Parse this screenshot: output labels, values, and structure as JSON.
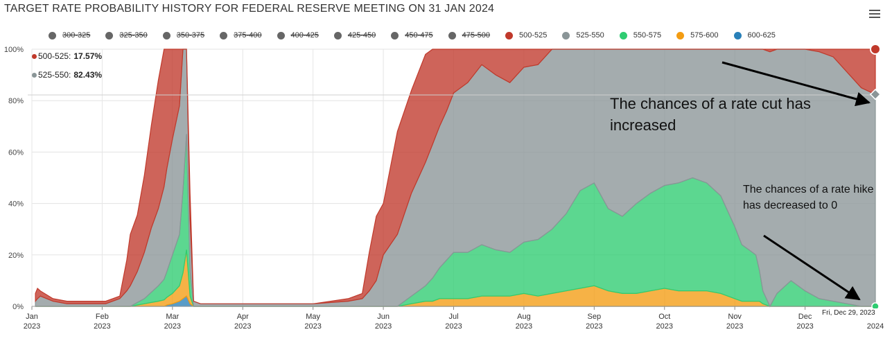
{
  "title": "TARGET RATE PROBABILITY HISTORY FOR FEDERAL RESERVE MEETING ON 31 JAN 2024",
  "menu_icon": "hamburger-menu-icon",
  "legend": [
    {
      "label": "300-325",
      "color": "#666666",
      "hidden": true
    },
    {
      "label": "325-350",
      "color": "#666666",
      "hidden": true
    },
    {
      "label": "350-375",
      "color": "#666666",
      "hidden": true
    },
    {
      "label": "375-400",
      "color": "#666666",
      "hidden": true
    },
    {
      "label": "400-425",
      "color": "#666666",
      "hidden": true
    },
    {
      "label": "425-450",
      "color": "#666666",
      "hidden": true
    },
    {
      "label": "450-475",
      "color": "#666666",
      "hidden": true
    },
    {
      "label": "475-500",
      "color": "#666666",
      "hidden": true
    },
    {
      "label": "500-525",
      "color": "#c0392b",
      "hidden": false
    },
    {
      "label": "525-550",
      "color": "#8a9597",
      "hidden": false
    },
    {
      "label": "550-575",
      "color": "#2ecc71",
      "hidden": false
    },
    {
      "label": "575-600",
      "color": "#f39c12",
      "hidden": false
    },
    {
      "label": "600-625",
      "color": "#2980b9",
      "hidden": false
    }
  ],
  "tooltip": {
    "line1": {
      "label": "500-525:",
      "value": "17.57%",
      "color": "#c0392b"
    },
    "line2": {
      "label": "525-550:",
      "value": "82.43%",
      "color": "#8a9597"
    }
  },
  "annotations": {
    "rate_cut": "The chances of a rate cut has increased",
    "rate_hike": "The chances of a rate hike has decreased to 0"
  },
  "date_flag": "Fri, Dec 29, 2023",
  "chart_data": {
    "type": "area",
    "stacking": "percent",
    "title": "TARGET RATE PROBABILITY HISTORY FOR FEDERAL RESERVE MEETING ON 31 JAN 2024",
    "x_range_months": [
      0,
      12
    ],
    "x_ticks": [
      {
        "m": 0,
        "label": "Jan",
        "year": "2023"
      },
      {
        "m": 1,
        "label": "Feb",
        "year": "2023"
      },
      {
        "m": 2,
        "label": "Mar",
        "year": "2023"
      },
      {
        "m": 3,
        "label": "Apr",
        "year": "2023"
      },
      {
        "m": 4,
        "label": "May",
        "year": "2023"
      },
      {
        "m": 5,
        "label": "Jun",
        "year": "2023"
      },
      {
        "m": 6,
        "label": "Jul",
        "year": "2023"
      },
      {
        "m": 7,
        "label": "Aug",
        "year": "2023"
      },
      {
        "m": 8,
        "label": "Sep",
        "year": "2023"
      },
      {
        "m": 9,
        "label": "Oct",
        "year": "2023"
      },
      {
        "m": 10,
        "label": "Nov",
        "year": "2023"
      },
      {
        "m": 11,
        "label": "Dec",
        "year": "2023"
      },
      {
        "m": 12,
        "label": "",
        "year": "2024"
      }
    ],
    "y_ticks": [
      0,
      20,
      40,
      60,
      80,
      100
    ],
    "y_tick_labels": [
      "0%",
      "20%",
      "40%",
      "60%",
      "80%",
      "100%"
    ],
    "ylim": [
      0,
      100
    ],
    "x": [
      0.05,
      0.08,
      0.12,
      0.3,
      0.5,
      0.7,
      0.9,
      1.0,
      1.05,
      1.15,
      1.25,
      1.35,
      1.4,
      1.5,
      1.6,
      1.7,
      1.8,
      1.88,
      1.92,
      2.0,
      2.1,
      2.15,
      2.2,
      2.25,
      2.3,
      2.4,
      3.0,
      4.0,
      4.5,
      4.7,
      4.8,
      4.9,
      5.0,
      5.2,
      5.4,
      5.6,
      5.7,
      5.8,
      5.9,
      6.0,
      6.2,
      6.4,
      6.6,
      6.8,
      7.0,
      7.2,
      7.4,
      7.6,
      7.8,
      8.0,
      8.2,
      8.4,
      8.6,
      8.8,
      9.0,
      9.2,
      9.4,
      9.6,
      9.8,
      10.0,
      10.1,
      10.2,
      10.3,
      10.35,
      10.4,
      10.5,
      10.6,
      10.8,
      11.0,
      11.2,
      11.4,
      11.6,
      11.8,
      12.0
    ],
    "series": [
      {
        "name": "600-625",
        "color": "#2980b9",
        "values": [
          0,
          0,
          0,
          0,
          0,
          0,
          0,
          0,
          0,
          0,
          0,
          0,
          0,
          0,
          0,
          0,
          0,
          0,
          0.5,
          1,
          2,
          3,
          4,
          1,
          0,
          0,
          0,
          0,
          0,
          0,
          0,
          0,
          0,
          0,
          0,
          0,
          0,
          0,
          0,
          0,
          0,
          0,
          0,
          0,
          0,
          0,
          0,
          0,
          0,
          0,
          0,
          0,
          0,
          0,
          0,
          0,
          0,
          0,
          0,
          0,
          0,
          0,
          0,
          0,
          0,
          0,
          0,
          0,
          0,
          0,
          0,
          0,
          0,
          0
        ]
      },
      {
        "name": "575-600",
        "color": "#f39c12",
        "values": [
          0,
          0,
          0,
          0,
          0,
          0,
          0,
          0,
          0,
          0,
          0,
          0,
          0,
          0.5,
          1,
          1.5,
          2,
          2.5,
          3,
          4,
          6,
          10,
          18,
          3,
          0,
          0,
          0,
          0,
          0,
          0,
          0,
          0,
          0,
          0,
          1,
          2,
          2,
          3,
          3,
          3,
          3,
          4,
          4,
          4,
          5,
          4,
          5,
          6,
          7,
          8,
          6,
          5,
          5,
          6,
          7,
          6,
          6,
          6,
          5,
          3,
          2,
          2,
          2,
          2,
          1,
          0,
          0,
          0,
          0,
          0,
          0,
          0,
          0,
          0
        ]
      },
      {
        "name": "550-575",
        "color": "#2ecc71",
        "values": [
          0,
          0,
          0,
          0,
          0,
          0,
          0,
          0,
          0,
          0,
          0,
          0,
          0,
          1,
          2,
          4,
          6,
          8,
          10,
          15,
          20,
          32,
          45,
          10,
          0,
          0,
          0,
          0,
          0,
          0,
          0,
          0,
          0,
          0,
          3,
          6,
          9,
          12,
          15,
          18,
          18,
          20,
          18,
          17,
          20,
          22,
          25,
          30,
          38,
          40,
          32,
          30,
          35,
          38,
          40,
          42,
          44,
          42,
          38,
          28,
          22,
          20,
          18,
          12,
          5,
          0,
          5,
          10,
          6,
          3,
          2,
          1,
          0,
          0
        ]
      },
      {
        "name": "525-550",
        "color": "#8a9597",
        "values": [
          2,
          3,
          4,
          2,
          1,
          1,
          1,
          1,
          1,
          2,
          3,
          6,
          8,
          12,
          18,
          25,
          30,
          36,
          40,
          45,
          50,
          55,
          65,
          20,
          2,
          1,
          1,
          1,
          2,
          3,
          6,
          10,
          20,
          28,
          40,
          48,
          52,
          55,
          58,
          62,
          66,
          70,
          68,
          66,
          68,
          68,
          72,
          70,
          75,
          80,
          84,
          86,
          88,
          90,
          93,
          95,
          96,
          97,
          97,
          95,
          96,
          98,
          99,
          99,
          99,
          99,
          100,
          99,
          98,
          96,
          95,
          90,
          85,
          82.43
        ]
      },
      {
        "name": "500-525",
        "color": "#c0392b",
        "values": [
          3,
          4,
          2,
          1,
          1,
          1,
          1,
          1,
          1,
          1,
          1,
          12,
          20,
          22,
          30,
          40,
          50,
          55,
          55,
          55,
          50,
          45,
          30,
          10,
          0,
          0,
          0,
          0,
          1,
          2,
          15,
          25,
          20,
          40,
          40,
          42,
          42,
          40,
          38,
          36,
          32,
          30,
          30,
          32,
          32,
          28,
          26,
          28,
          24,
          20,
          16,
          14,
          12,
          10,
          7,
          5,
          4,
          3,
          3,
          5,
          4,
          2,
          1,
          1,
          1,
          1,
          0,
          1,
          2,
          4,
          5,
          10,
          15,
          17.57
        ]
      }
    ]
  }
}
